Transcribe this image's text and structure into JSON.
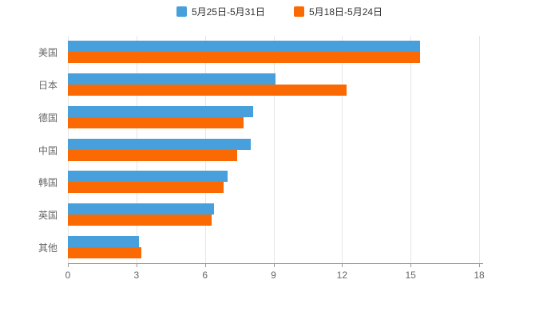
{
  "chart_data": {
    "type": "bar",
    "orientation": "horizontal",
    "title": "",
    "xlabel": "",
    "ylabel": "",
    "categories": [
      "美国",
      "日本",
      "德国",
      "中国",
      "韩国",
      "英国",
      "其他"
    ],
    "series": [
      {
        "name": "5月25日-5月31日",
        "color": "#47A0DB",
        "values": [
          15.4,
          9.1,
          8.1,
          8.0,
          7.0,
          6.4,
          3.1
        ]
      },
      {
        "name": "5月18日-5月24日",
        "color": "#FB6A02",
        "values": [
          15.4,
          12.2,
          7.7,
          7.4,
          6.8,
          6.3,
          3.2
        ]
      }
    ],
    "xlim": [
      0,
      18
    ],
    "xticks": [
      0,
      3,
      6,
      9,
      12,
      15,
      18
    ],
    "grid": true,
    "legend_position": "top",
    "colors": {
      "grid_line": "#e6e6e6",
      "axis_line": "#999999",
      "tick_label": "#666666",
      "category_label": "#666666",
      "legend_text": "#333333",
      "background": "#ffffff"
    }
  }
}
